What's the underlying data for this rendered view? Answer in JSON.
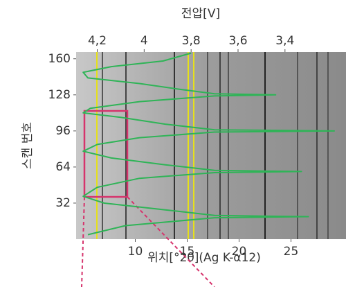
{
  "chart_data": {
    "type": "line",
    "top_axis_label": "전압[V]",
    "x_axis_label": "위치[°2θ](Ag K-α12)",
    "y_axis_label": "스캔 번호",
    "xlim": [
      4.3,
      30.3
    ],
    "xticks": [
      10,
      15,
      20,
      25
    ],
    "x2lim": [
      4.29,
      3.14
    ],
    "x2ticks": [
      {
        "value": 4.2,
        "label": "4,2"
      },
      4,
      {
        "value": 3.8,
        "label": "3,8"
      },
      {
        "value": 3.6,
        "label": "3,6"
      },
      {
        "value": 3.4,
        "label": "3,4"
      }
    ],
    "ylim": [
      0,
      166
    ],
    "yticks": [
      32,
      64,
      96,
      128,
      160
    ],
    "series": [
      {
        "axis": "x2",
        "color": "#2fb457",
        "x": [
          3.8,
          3.92,
          4.14,
          4.26,
          4.24,
          4.02,
          3.85,
          3.7,
          3.44,
          3.7,
          4.02,
          4.23,
          4.26,
          4.1,
          3.91,
          3.7,
          3.19,
          3.7,
          4.02,
          4.2,
          4.26,
          4.14,
          3.91,
          3.7,
          3.33,
          3.7,
          4.02,
          4.2,
          4.26,
          4.17,
          3.91,
          3.7,
          3.3,
          3.7,
          4.08,
          4.24
        ],
        "values": [
          165,
          158,
          153,
          148,
          143,
          138,
          133,
          129,
          128,
          127,
          122,
          116,
          112,
          108,
          102,
          97,
          96,
          95,
          90,
          84,
          78,
          72,
          66,
          61,
          60,
          59,
          54,
          46,
          38,
          32,
          26,
          21,
          20,
          19,
          12,
          4
        ]
      }
    ]
  }
}
